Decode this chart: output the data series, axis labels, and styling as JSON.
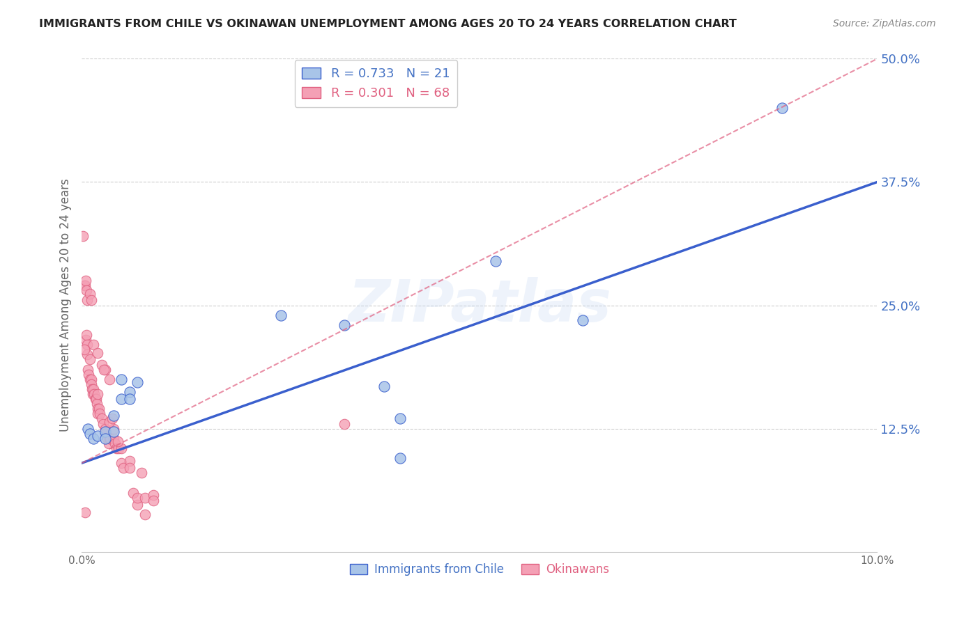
{
  "title": "IMMIGRANTS FROM CHILE VS OKINAWAN UNEMPLOYMENT AMONG AGES 20 TO 24 YEARS CORRELATION CHART",
  "source": "Source: ZipAtlas.com",
  "ylabel": "Unemployment Among Ages 20 to 24 years",
  "xlim": [
    0.0,
    0.1
  ],
  "ylim": [
    0.0,
    0.5
  ],
  "xticks": [
    0.0,
    0.02,
    0.04,
    0.06,
    0.08,
    0.1
  ],
  "xtick_labels": [
    "0.0%",
    "",
    "",
    "",
    "",
    "10.0%"
  ],
  "ytick_labels_right": [
    "12.5%",
    "25.0%",
    "37.5%",
    "50.0%"
  ],
  "ytick_vals_right": [
    0.125,
    0.25,
    0.375,
    0.5
  ],
  "watermark": "ZIPatlas",
  "legend_entries": [
    {
      "label": "R = 0.733   N = 21"
    },
    {
      "label": "R = 0.301   N = 68"
    }
  ],
  "legend_labels_bottom": [
    "Immigrants from Chile",
    "Okinawans"
  ],
  "blue_scatter_color": "#a8c4e8",
  "pink_scatter_color": "#f4a0b5",
  "blue_line_color": "#3a5fcd",
  "pink_line_color": "#e06080",
  "blue_label_color": "#4472c4",
  "pink_label_color": "#e06080",
  "blue_points": [
    [
      0.0008,
      0.125
    ],
    [
      0.001,
      0.12
    ],
    [
      0.0015,
      0.115
    ],
    [
      0.002,
      0.118
    ],
    [
      0.003,
      0.122
    ],
    [
      0.003,
      0.115
    ],
    [
      0.004,
      0.138
    ],
    [
      0.004,
      0.122
    ],
    [
      0.005,
      0.155
    ],
    [
      0.005,
      0.175
    ],
    [
      0.006,
      0.162
    ],
    [
      0.006,
      0.155
    ],
    [
      0.007,
      0.172
    ],
    [
      0.025,
      0.24
    ],
    [
      0.033,
      0.23
    ],
    [
      0.038,
      0.168
    ],
    [
      0.04,
      0.095
    ],
    [
      0.04,
      0.135
    ],
    [
      0.052,
      0.295
    ],
    [
      0.063,
      0.235
    ],
    [
      0.088,
      0.45
    ]
  ],
  "pink_points": [
    [
      0.0002,
      0.32
    ],
    [
      0.0003,
      0.27
    ],
    [
      0.0004,
      0.27
    ],
    [
      0.0005,
      0.215
    ],
    [
      0.0006,
      0.22
    ],
    [
      0.0007,
      0.21
    ],
    [
      0.0007,
      0.2
    ],
    [
      0.0008,
      0.185
    ],
    [
      0.0009,
      0.18
    ],
    [
      0.001,
      0.175
    ],
    [
      0.001,
      0.195
    ],
    [
      0.0012,
      0.175
    ],
    [
      0.0012,
      0.17
    ],
    [
      0.0013,
      0.165
    ],
    [
      0.0014,
      0.16
    ],
    [
      0.0015,
      0.165
    ],
    [
      0.0016,
      0.16
    ],
    [
      0.0017,
      0.155
    ],
    [
      0.0018,
      0.155
    ],
    [
      0.0019,
      0.15
    ],
    [
      0.002,
      0.16
    ],
    [
      0.002,
      0.145
    ],
    [
      0.002,
      0.14
    ],
    [
      0.0022,
      0.145
    ],
    [
      0.0023,
      0.14
    ],
    [
      0.0025,
      0.135
    ],
    [
      0.0027,
      0.13
    ],
    [
      0.003,
      0.125
    ],
    [
      0.003,
      0.12
    ],
    [
      0.0032,
      0.115
    ],
    [
      0.0034,
      0.11
    ],
    [
      0.0035,
      0.115
    ],
    [
      0.0036,
      0.115
    ],
    [
      0.004,
      0.115
    ],
    [
      0.0042,
      0.11
    ],
    [
      0.0044,
      0.105
    ],
    [
      0.0046,
      0.105
    ],
    [
      0.005,
      0.105
    ],
    [
      0.005,
      0.09
    ],
    [
      0.0052,
      0.085
    ],
    [
      0.006,
      0.092
    ],
    [
      0.006,
      0.085
    ],
    [
      0.0065,
      0.06
    ],
    [
      0.007,
      0.048
    ],
    [
      0.007,
      0.055
    ],
    [
      0.0075,
      0.08
    ],
    [
      0.008,
      0.055
    ],
    [
      0.009,
      0.058
    ],
    [
      0.009,
      0.052
    ],
    [
      0.0003,
      0.205
    ],
    [
      0.0005,
      0.275
    ],
    [
      0.0006,
      0.265
    ],
    [
      0.0007,
      0.255
    ],
    [
      0.001,
      0.262
    ],
    [
      0.0012,
      0.255
    ],
    [
      0.0015,
      0.21
    ],
    [
      0.002,
      0.202
    ],
    [
      0.0025,
      0.19
    ],
    [
      0.003,
      0.185
    ],
    [
      0.0035,
      0.175
    ],
    [
      0.004,
      0.125
    ],
    [
      0.0045,
      0.112
    ],
    [
      0.0035,
      0.132
    ],
    [
      0.0028,
      0.185
    ],
    [
      0.0038,
      0.135
    ],
    [
      0.033,
      0.13
    ],
    [
      0.008,
      0.038
    ],
    [
      0.0004,
      0.04
    ]
  ],
  "background_color": "#ffffff",
  "grid_color": "#cccccc",
  "blue_line_endpoints": [
    [
      0.0,
      0.09
    ],
    [
      0.1,
      0.375
    ]
  ],
  "pink_line_endpoints": [
    [
      0.0,
      0.09
    ],
    [
      0.1,
      0.5
    ]
  ]
}
